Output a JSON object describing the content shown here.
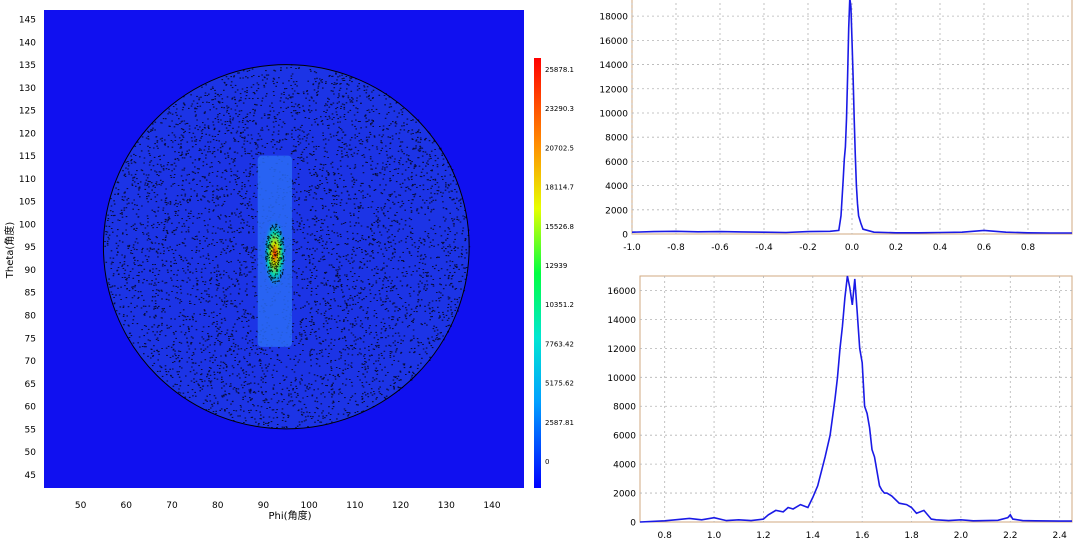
{
  "colors": {
    "heatmap_bg": "#1010f0",
    "disk_fill": "#1c34e6",
    "contour_dots": "#000000",
    "line": "#1a1ae6",
    "frame": "#d2aa82",
    "grid": "#b4b4b4",
    "colorbar_top": "#ff0000",
    "colorbar_bottom": "#0000ff"
  },
  "chart_data": [
    {
      "type": "heatmap",
      "xlabel": "Phi(角度)",
      "ylabel": "Theta(角度)",
      "xlim": [
        42,
        147
      ],
      "ylim": [
        42,
        147
      ],
      "x_ticks": [
        50,
        60,
        70,
        80,
        90,
        100,
        110,
        120,
        130,
        140
      ],
      "y_ticks": [
        45,
        50,
        55,
        60,
        65,
        70,
        75,
        80,
        85,
        90,
        95,
        100,
        105,
        110,
        115,
        120,
        125,
        130,
        135,
        140,
        145
      ],
      "disk": {
        "center": [
          95,
          95
        ],
        "radius_x": 40,
        "radius_y": 40
      },
      "hotspot": {
        "center": [
          92.5,
          93.5
        ],
        "phi_range": [
          90.5,
          94.5
        ],
        "theta_range": [
          87,
          100
        ]
      },
      "colorbar": {
        "min": 0,
        "max": 25878.1,
        "tick_labels": [
          "25878.1",
          "23290.3",
          "20702.5",
          "18114.7",
          "15526.8",
          "12939",
          "10351.2",
          "7763.42",
          "5175.62",
          "2587.81",
          "0"
        ]
      },
      "grid": false
    },
    {
      "type": "line",
      "xlim": [
        -1.0,
        1.0
      ],
      "ylim": [
        0,
        19500
      ],
      "x_ticks": [
        -1.0,
        -0.8,
        -0.6,
        -0.4,
        -0.2,
        0.0,
        0.2,
        0.4,
        0.6,
        0.8
      ],
      "x_tick_labels": [
        "-1.0",
        "-0.8",
        "-0.6",
        "-0.4",
        "-0.2",
        "0.0",
        "0.2",
        "0.4",
        "0.6",
        "0.8"
      ],
      "y_ticks": [
        0,
        2000,
        4000,
        6000,
        8000,
        10000,
        12000,
        14000,
        16000,
        18000
      ],
      "grid": true,
      "series": [
        {
          "x": [
            -1.0,
            -0.9,
            -0.8,
            -0.7,
            -0.6,
            -0.5,
            -0.4,
            -0.3,
            -0.2,
            -0.1,
            -0.06,
            -0.05,
            -0.045,
            -0.04,
            -0.035,
            -0.03,
            -0.025,
            -0.02,
            -0.015,
            -0.01,
            -0.005,
            0.0,
            0.005,
            0.01,
            0.015,
            0.02,
            0.025,
            0.03,
            0.04,
            0.05,
            0.1,
            0.2,
            0.3,
            0.4,
            0.5,
            0.6,
            0.7,
            0.8,
            0.9,
            1.0
          ],
          "y": [
            150,
            200,
            220,
            180,
            200,
            170,
            150,
            120,
            200,
            220,
            300,
            1500,
            3000,
            4500,
            6200,
            7200,
            9500,
            13000,
            17000,
            19500,
            18800,
            16000,
            13000,
            9500,
            6500,
            4000,
            2500,
            1500,
            900,
            400,
            150,
            100,
            100,
            120,
            150,
            300,
            150,
            100,
            80,
            80
          ]
        }
      ]
    },
    {
      "type": "line",
      "xlim": [
        0.7,
        2.45
      ],
      "ylim": [
        0,
        17000
      ],
      "x_ticks": [
        0.8,
        1.0,
        1.2,
        1.4,
        1.6,
        1.8,
        2.0,
        2.2,
        2.4
      ],
      "x_tick_labels": [
        "0.8",
        "1.0",
        "1.2",
        "1.4",
        "1.6",
        "1.8",
        "2.0",
        "2.2",
        "2.4"
      ],
      "y_ticks": [
        0,
        2000,
        4000,
        6000,
        8000,
        10000,
        12000,
        14000,
        16000
      ],
      "grid": true,
      "series": [
        {
          "x": [
            0.7,
            0.8,
            0.9,
            0.95,
            1.0,
            1.05,
            1.1,
            1.15,
            1.2,
            1.22,
            1.25,
            1.28,
            1.3,
            1.32,
            1.35,
            1.38,
            1.4,
            1.42,
            1.45,
            1.47,
            1.49,
            1.5,
            1.51,
            1.52,
            1.53,
            1.54,
            1.55,
            1.56,
            1.57,
            1.58,
            1.59,
            1.6,
            1.61,
            1.62,
            1.63,
            1.64,
            1.65,
            1.66,
            1.67,
            1.68,
            1.69,
            1.7,
            1.72,
            1.75,
            1.78,
            1.8,
            1.82,
            1.85,
            1.88,
            1.9,
            1.95,
            2.0,
            2.05,
            2.1,
            2.15,
            2.19,
            2.2,
            2.21,
            2.25,
            2.3,
            2.4,
            2.45
          ],
          "y": [
            0,
            80,
            250,
            150,
            300,
            100,
            150,
            100,
            200,
            500,
            800,
            700,
            1000,
            900,
            1200,
            1000,
            1700,
            2500,
            4500,
            6000,
            8500,
            10000,
            12000,
            13500,
            15500,
            17000,
            16200,
            15000,
            16800,
            14500,
            12000,
            11000,
            8000,
            7500,
            6500,
            5000,
            4500,
            3500,
            2500,
            2200,
            2000,
            2000,
            1800,
            1300,
            1200,
            1000,
            600,
            800,
            200,
            150,
            100,
            150,
            80,
            100,
            120,
            300,
            500,
            200,
            100,
            80,
            60,
            60
          ]
        }
      ]
    }
  ]
}
